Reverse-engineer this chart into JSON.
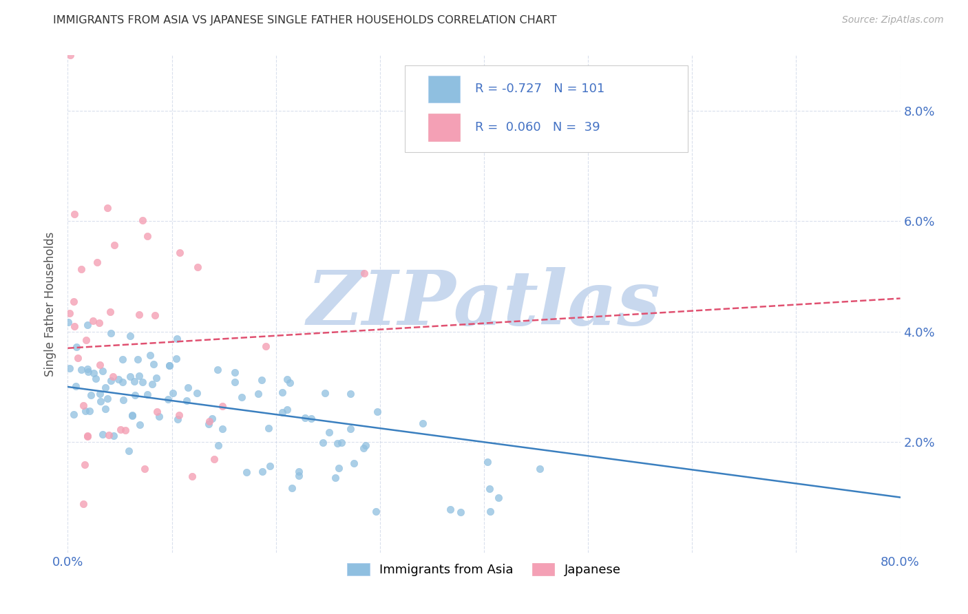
{
  "title": "IMMIGRANTS FROM ASIA VS JAPANESE SINGLE FATHER HOUSEHOLDS CORRELATION CHART",
  "source": "Source: ZipAtlas.com",
  "ylabel": "Single Father Households",
  "watermark": "ZIPatlas",
  "legend_label1": "Immigrants from Asia",
  "legend_label2": "Japanese",
  "r1": -0.727,
  "n1": 101,
  "r2": 0.06,
  "n2": 39,
  "xlim": [
    0.0,
    0.8
  ],
  "ylim": [
    0.0,
    0.09
  ],
  "xtick_positions": [
    0.0,
    0.1,
    0.2,
    0.3,
    0.4,
    0.5,
    0.6,
    0.7,
    0.8
  ],
  "xtick_labels": [
    "0.0%",
    "",
    "",
    "",
    "",
    "",
    "",
    "",
    "80.0%"
  ],
  "ytick_positions": [
    0.02,
    0.04,
    0.06,
    0.08
  ],
  "ytick_labels_right": [
    "2.0%",
    "4.0%",
    "6.0%",
    "8.0%"
  ],
  "color_blue": "#8fbfe0",
  "color_pink": "#f4a0b5",
  "line_color_blue": "#3a7fbf",
  "line_color_pink": "#e05070",
  "background": "#ffffff",
  "grid_color": "#d0d8e8",
  "title_color": "#333333",
  "source_color": "#aaaaaa",
  "watermark_color": "#c8d8ee",
  "tick_color": "#4472c4",
  "ylabel_color": "#555555"
}
